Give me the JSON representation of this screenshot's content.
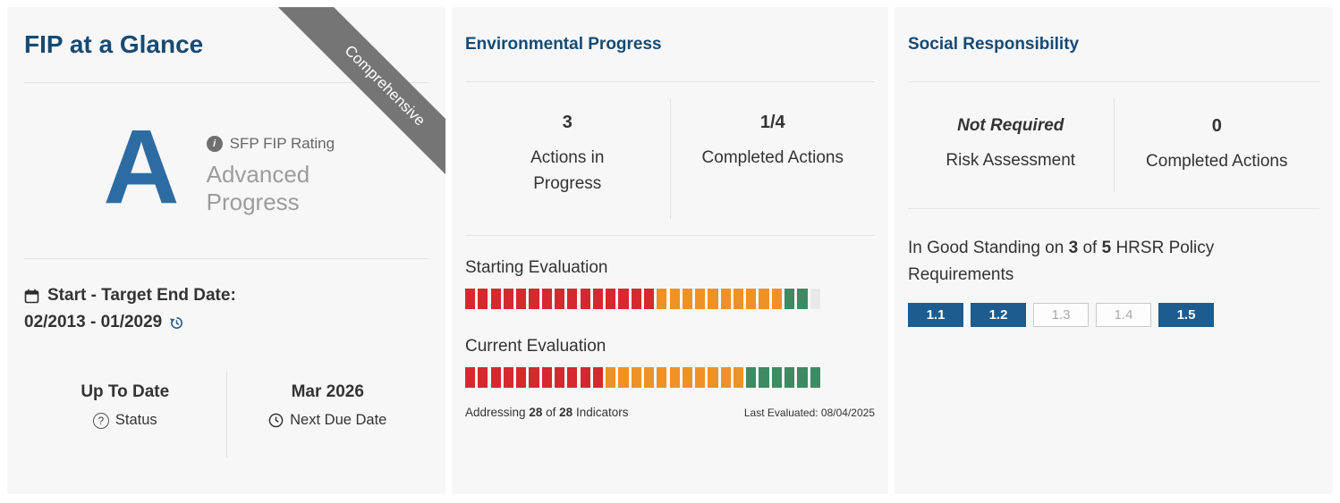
{
  "colors": {
    "heading_navy": "#164a73",
    "rating_blue": "#2d6ca3",
    "ribbon_gray": "#757575",
    "segment_red": "#d7282f",
    "segment_orange": "#ef9226",
    "segment_green": "#3f8a63",
    "segment_empty": "#e9e9e9",
    "badge_blue": "#1d5c8f"
  },
  "left_panel": {
    "title": "FIP at a Glance",
    "ribbon": "Comprehensive",
    "rating": {
      "grade": "A",
      "label": "SFP FIP Rating",
      "description": "Advanced Progress"
    },
    "dates": {
      "label": "Start - Target End Date:",
      "value": "02/2013 - 01/2029"
    },
    "status": {
      "value": "Up To Date",
      "label": "Status"
    },
    "next_due": {
      "value": "Mar 2026",
      "label": "Next Due Date"
    }
  },
  "environmental": {
    "title": "Environmental Progress",
    "stats": [
      {
        "value": "3",
        "label": "Actions in Progress"
      },
      {
        "value": "1/4",
        "label": "Completed Actions"
      }
    ],
    "starting_evaluation": {
      "label": "Starting Evaluation",
      "segments": {
        "red": 15,
        "orange": 10,
        "green": 2,
        "empty": 1
      }
    },
    "current_evaluation": {
      "label": "Current Evaluation",
      "segments": {
        "red": 11,
        "orange": 11,
        "green": 6,
        "empty": 0
      }
    },
    "addressing": {
      "prefix": "Addressing",
      "count": "28",
      "of": "of",
      "total": "28",
      "suffix": "Indicators"
    },
    "last_evaluated": "Last Evaluated: 08/04/2025"
  },
  "social": {
    "title": "Social Responsibility",
    "stats": [
      {
        "value": "Not Required",
        "label": "Risk Assessment"
      },
      {
        "value": "0",
        "label": "Completed Actions"
      }
    ],
    "standing": {
      "prefix": "In Good Standing on",
      "count": "3",
      "of": "of",
      "total": "5",
      "suffix": "HRSR Policy Requirements"
    },
    "badges": [
      {
        "label": "1.1",
        "state": "filled"
      },
      {
        "label": "1.2",
        "state": "filled"
      },
      {
        "label": "1.3",
        "state": "outline"
      },
      {
        "label": "1.4",
        "state": "outline"
      },
      {
        "label": "1.5",
        "state": "filled"
      }
    ]
  }
}
